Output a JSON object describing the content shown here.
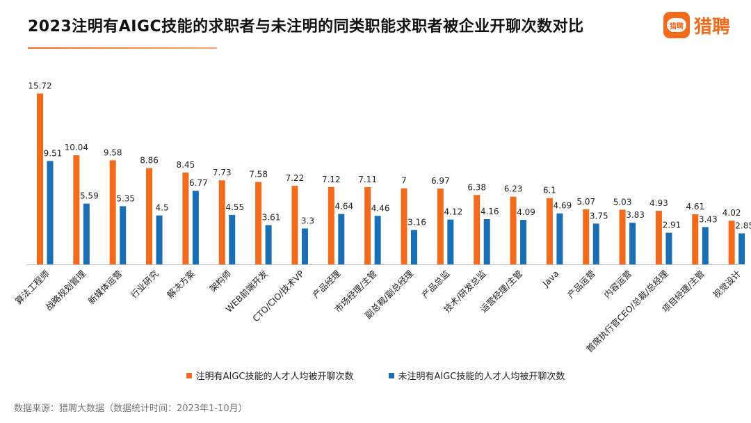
{
  "header": {
    "title": "2023注明有AIGC技能的求职者与未注明的同类职能求职者被企业开聊次数对比",
    "logo_badge_text": "猎聘",
    "logo_text": "猎聘"
  },
  "footer": {
    "source": "数据来源：猎聘大数据（数据统计时间：2023年1-10月）"
  },
  "colors": {
    "series_a": "#f26b1d",
    "series_b": "#1a6fb4"
  },
  "chart_data": {
    "type": "bar",
    "title": "2023注明有AIGC技能的求职者与未注明的同类职能求职者被企业开聊次数对比",
    "xlabel": "",
    "ylabel": "",
    "ylim": [
      0,
      16
    ],
    "grid": false,
    "legend_position": "bottom",
    "categories": [
      "算法工程师",
      "战略规划管理",
      "新媒体运营",
      "行业研究",
      "解决方案",
      "架构师",
      "WEB前端开发",
      "CTO/CIO/技术VP",
      "产品经理",
      "市场经理/主管",
      "副总裁/副总经理",
      "产品总监",
      "技术/研发总监",
      "运营经理/主管",
      "Java",
      "产品运营",
      "内容运营",
      "首席执行官CEO/总裁/总经理",
      "项目经理/主管",
      "视觉设计"
    ],
    "series": [
      {
        "name": "注明有AIGC技能的人才人均被开聊次数",
        "values": [
          15.72,
          10.04,
          9.58,
          8.86,
          8.45,
          7.73,
          7.58,
          7.22,
          7.12,
          7.11,
          7,
          6.97,
          6.38,
          6.23,
          6.1,
          5.07,
          5.03,
          4.93,
          4.61,
          4.02
        ],
        "labels": [
          "15.72",
          "10.04",
          "9.58",
          "8.86",
          "8.45",
          "7.73",
          "7.58",
          "7.22",
          "7.12",
          "7.11",
          "7",
          "6.97",
          "6.38",
          "6.23",
          "6.1",
          "5.07",
          "5.03",
          "4.93",
          "4.61",
          "4.02"
        ]
      },
      {
        "name": "未注明有AIGC技能的人才人均被开聊次数",
        "values": [
          9.51,
          5.59,
          5.35,
          4.5,
          6.77,
          4.55,
          3.61,
          3.3,
          4.64,
          4.46,
          3.16,
          4.12,
          4.16,
          4.09,
          4.69,
          3.75,
          3.83,
          2.91,
          3.43,
          2.85
        ],
        "labels": [
          "9.51",
          "5.59",
          "5.35",
          "4.5",
          "6.77",
          "4.55",
          "3.61",
          "3.3",
          "4.64",
          "4.46",
          "3.16",
          "4.12",
          "4.16",
          "4.09",
          "4.69",
          "3.75",
          "3.83",
          "2.91",
          "3.43",
          "2.85"
        ]
      }
    ]
  }
}
